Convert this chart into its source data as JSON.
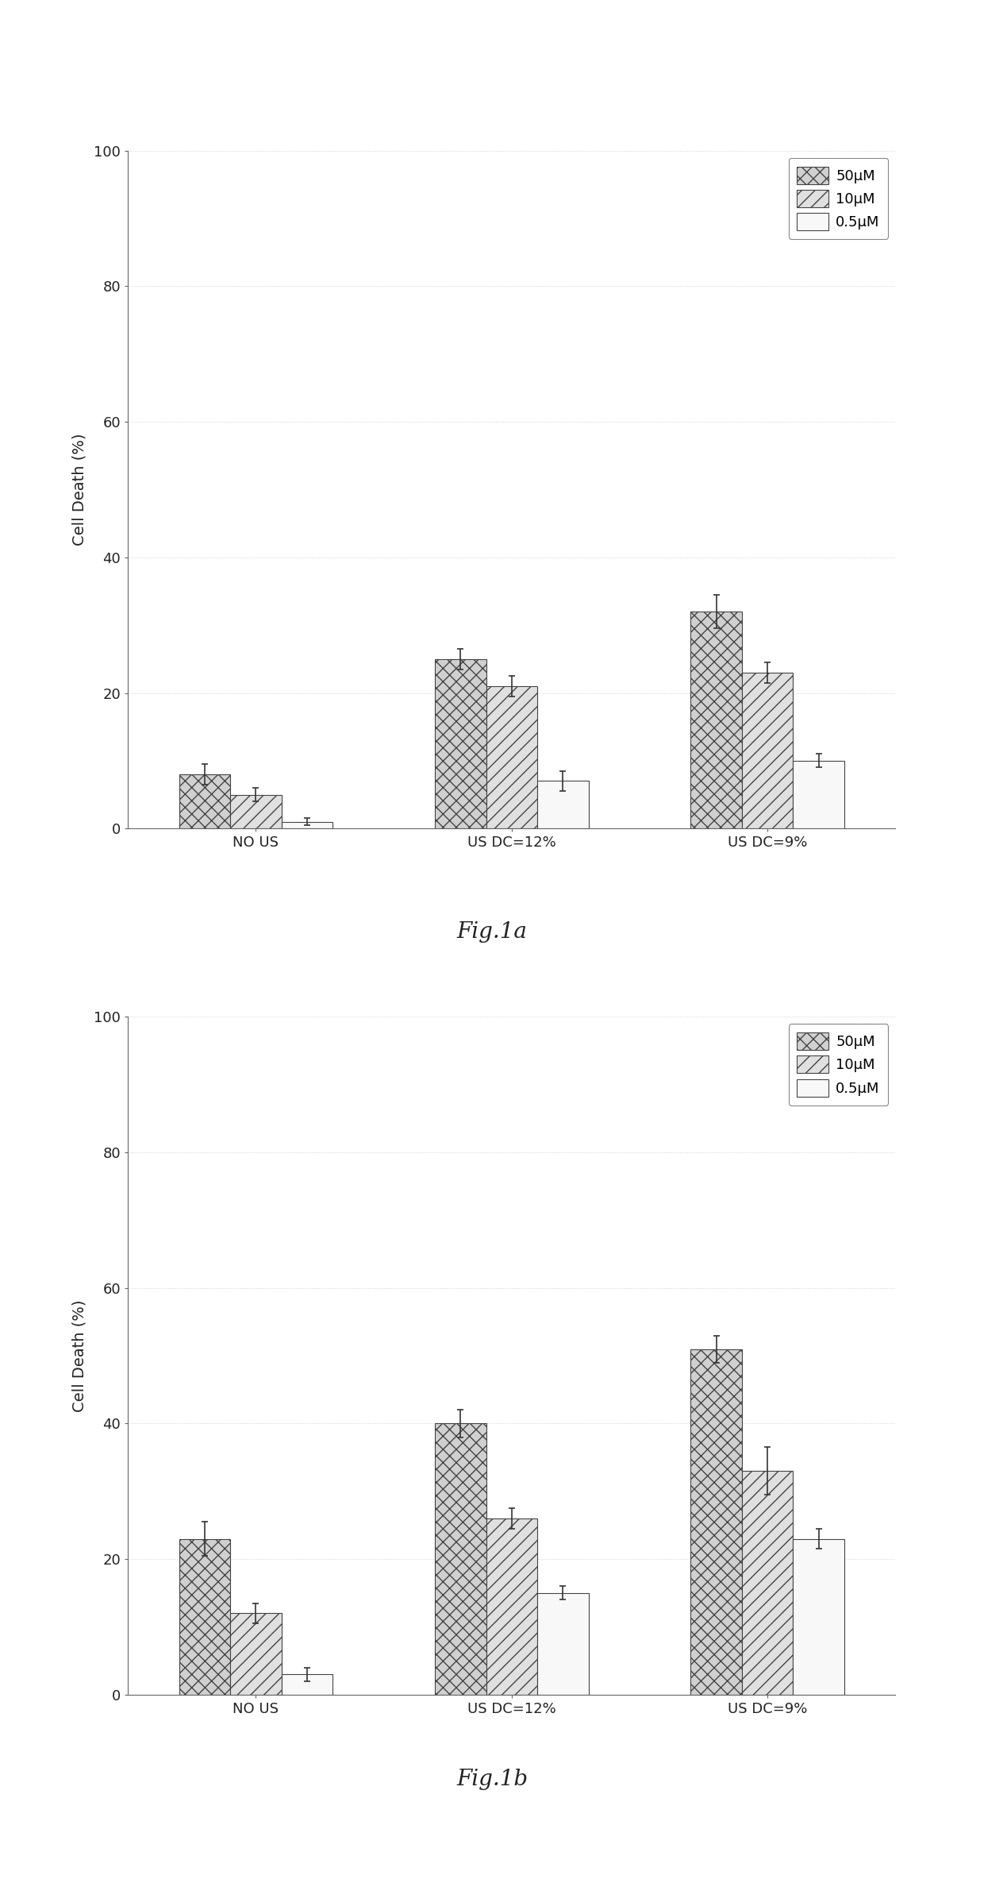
{
  "fig1a": {
    "title": "Fig.1a",
    "categories": [
      "NO US",
      "US DC=12%",
      "US DC=9%"
    ],
    "series": [
      {
        "label": "50μM",
        "values": [
          8,
          25,
          32
        ],
        "errors": [
          1.5,
          1.5,
          2.5
        ],
        "hatch": "xx",
        "facecolor": "#d0d0d0",
        "edgecolor": "#444444"
      },
      {
        "label": "10μM",
        "values": [
          5,
          21,
          23
        ],
        "errors": [
          1.0,
          1.5,
          1.5
        ],
        "hatch": "//",
        "facecolor": "#e0e0e0",
        "edgecolor": "#444444"
      },
      {
        "label": "0.5μM",
        "values": [
          1,
          7,
          10
        ],
        "errors": [
          0.5,
          1.5,
          1.0
        ],
        "hatch": "",
        "facecolor": "#f8f8f8",
        "edgecolor": "#444444"
      }
    ],
    "ylabel": "Cell Death (%)",
    "ylim": [
      0,
      100
    ],
    "yticks": [
      0,
      20,
      40,
      60,
      80,
      100
    ]
  },
  "fig1b": {
    "title": "Fig.1b",
    "categories": [
      "NO US",
      "US DC=12%",
      "US DC=9%"
    ],
    "series": [
      {
        "label": "50μM",
        "values": [
          23,
          40,
          51
        ],
        "errors": [
          2.5,
          2.0,
          2.0
        ],
        "hatch": "xx",
        "facecolor": "#d0d0d0",
        "edgecolor": "#444444"
      },
      {
        "label": "10μM",
        "values": [
          12,
          26,
          33
        ],
        "errors": [
          1.5,
          1.5,
          3.5
        ],
        "hatch": "//",
        "facecolor": "#e0e0e0",
        "edgecolor": "#444444"
      },
      {
        "label": "0.5μM",
        "values": [
          3,
          15,
          23
        ],
        "errors": [
          1.0,
          1.0,
          1.5
        ],
        "hatch": "",
        "facecolor": "#f8f8f8",
        "edgecolor": "#444444"
      }
    ],
    "ylabel": "Cell Death (%)",
    "ylim": [
      0,
      100
    ],
    "yticks": [
      0,
      20,
      40,
      60,
      80,
      100
    ]
  },
  "background_color": "#ffffff",
  "bar_width": 0.2,
  "title_fontsize": 20,
  "label_fontsize": 14,
  "tick_fontsize": 13,
  "legend_fontsize": 13
}
